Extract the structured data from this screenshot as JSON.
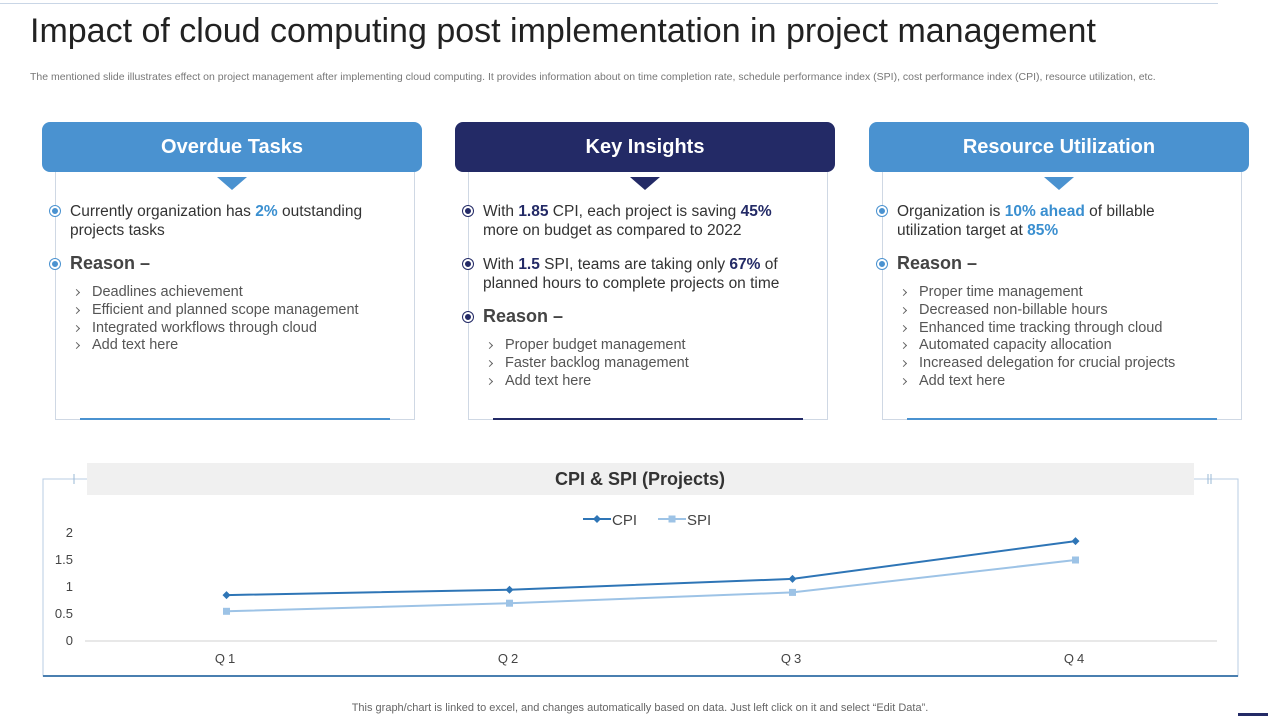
{
  "header": {
    "title": "Impact of cloud computing post implementation in project management",
    "subtitle": "The mentioned slide illustrates effect on project management after implementing cloud computing. It provides information about on time completion rate, schedule performance index (SPI), cost performance index (CPI), resource utilization, etc."
  },
  "cards": [
    {
      "title": "Overdue Tasks",
      "header_color": "#4a92d0",
      "highlight_color": "#3a8fd0",
      "points": [
        {
          "segments": [
            "Currently organization has ",
            "2%",
            " outstanding projects tasks"
          ]
        }
      ],
      "reason": "Reason –",
      "items": [
        "Deadlines achievement",
        "Efficient and planned scope management",
        "Integrated workflows through cloud",
        "Add text here"
      ]
    },
    {
      "title": "Key Insights",
      "header_color": "#232a66",
      "highlight_color": "#232a66",
      "points": [
        {
          "segments": [
            "With ",
            "1.85",
            " CPI, each project is saving ",
            "45%",
            " more on budget as compared to 2022"
          ]
        },
        {
          "segments": [
            "With ",
            "1.5",
            " SPI, teams are taking only ",
            "67%",
            " of planned hours to complete projects on time"
          ]
        }
      ],
      "reason": "Reason –",
      "items": [
        "Proper budget management",
        "Faster backlog management",
        "Add text here"
      ]
    },
    {
      "title": "Resource Utilization",
      "header_color": "#4a92d0",
      "highlight_color": "#3a8fd0",
      "points": [
        {
          "segments": [
            "Organization is ",
            "10% ahead",
            " of billable utilization target at ",
            "85%"
          ]
        }
      ],
      "reason": "Reason –",
      "items": [
        "Proper time management",
        "Decreased non-billable hours",
        "Enhanced time tracking through cloud",
        "Automated capacity allocation",
        "Increased delegation for crucial projects",
        "Add text here"
      ]
    }
  ],
  "chart_data": {
    "type": "line",
    "title": "CPI & SPI (Projects)",
    "categories": [
      "Q1",
      "Q2",
      "Q3",
      "Q4"
    ],
    "series": [
      {
        "name": "CPI",
        "color": "#2e75b6",
        "marker": "diamond",
        "values": [
          0.85,
          0.95,
          1.15,
          1.85
        ]
      },
      {
        "name": "SPI",
        "color": "#9dc3e6",
        "marker": "square",
        "values": [
          0.55,
          0.7,
          0.9,
          1.5
        ]
      }
    ],
    "ylim": [
      0,
      2
    ],
    "yticks": [
      0,
      0.5,
      1,
      1.5,
      2
    ],
    "grid": false,
    "legend": "top"
  },
  "footer": "This graph/chart is linked to excel, and changes automatically based on data. Just left click on it and select “Edit Data”."
}
